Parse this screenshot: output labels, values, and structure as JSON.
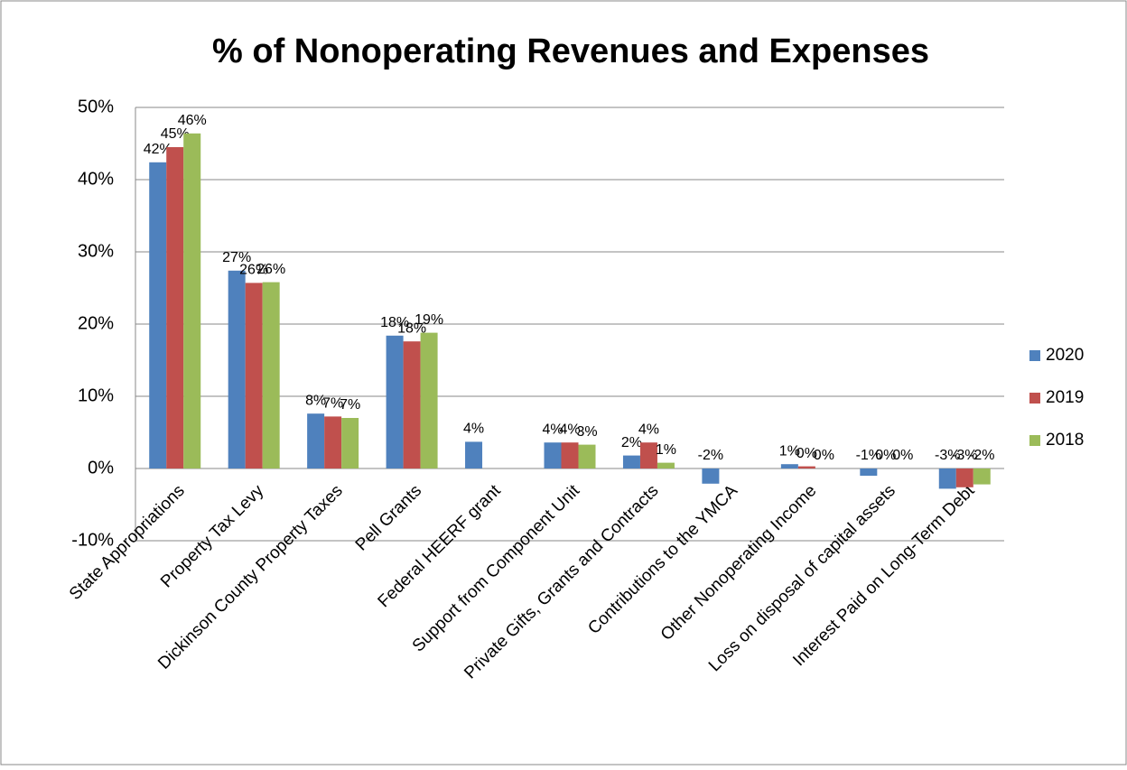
{
  "chart_data": {
    "type": "bar",
    "title": "% of Nonoperating Revenues and Expenses",
    "categories": [
      "State Appropriations",
      "Property Tax Levy",
      "Dickinson County Property Taxes",
      "Pell Grants",
      "Federal HEERF grant",
      "Support from Component Unit",
      "Private Gifts, Grants and Contracts",
      "Contributions to the YMCA",
      "Other Nonoperating Income",
      "Loss on disposal of capital assets",
      "Interest Paid on Long-Term Debt"
    ],
    "series": [
      {
        "name": "2020",
        "color": "#4f81bd",
        "values": [
          42.4,
          27.4,
          7.6,
          18.4,
          3.7,
          3.6,
          1.8,
          -2.1,
          0.6,
          -1.0,
          -2.8
        ],
        "value_labels": [
          "42%",
          "27%",
          "8%",
          "18%",
          "4%",
          "4%",
          "2%",
          "-2%",
          "1%",
          "-1%",
          "-3%"
        ]
      },
      {
        "name": "2019",
        "color": "#c0504d",
        "values": [
          44.5,
          25.7,
          7.2,
          17.6,
          null,
          3.6,
          3.6,
          null,
          0.3,
          0.0,
          -2.6
        ],
        "value_labels": [
          "45%",
          "26%",
          "7%",
          "18%",
          null,
          "4%",
          "4%",
          null,
          "0%",
          "0%",
          "-3%"
        ]
      },
      {
        "name": "2018",
        "color": "#9bbb59",
        "values": [
          46.4,
          25.8,
          7.0,
          18.8,
          null,
          3.3,
          0.8,
          null,
          0.0,
          0.0,
          -2.2
        ],
        "value_labels": [
          "46%",
          "26%",
          "7%",
          "19%",
          null,
          "3%",
          "1%",
          null,
          "0%",
          "0%",
          "-2%"
        ]
      }
    ],
    "ylim": [
      -10,
      50
    ],
    "yticks": [
      {
        "value": -10,
        "label": "-10%"
      },
      {
        "value": 0,
        "label": "0%"
      },
      {
        "value": 10,
        "label": "10%"
      },
      {
        "value": 20,
        "label": "20%"
      },
      {
        "value": 30,
        "label": "30%"
      },
      {
        "value": 40,
        "label": "40%"
      },
      {
        "value": 50,
        "label": "50%"
      }
    ],
    "grid": true,
    "legend": "right"
  }
}
